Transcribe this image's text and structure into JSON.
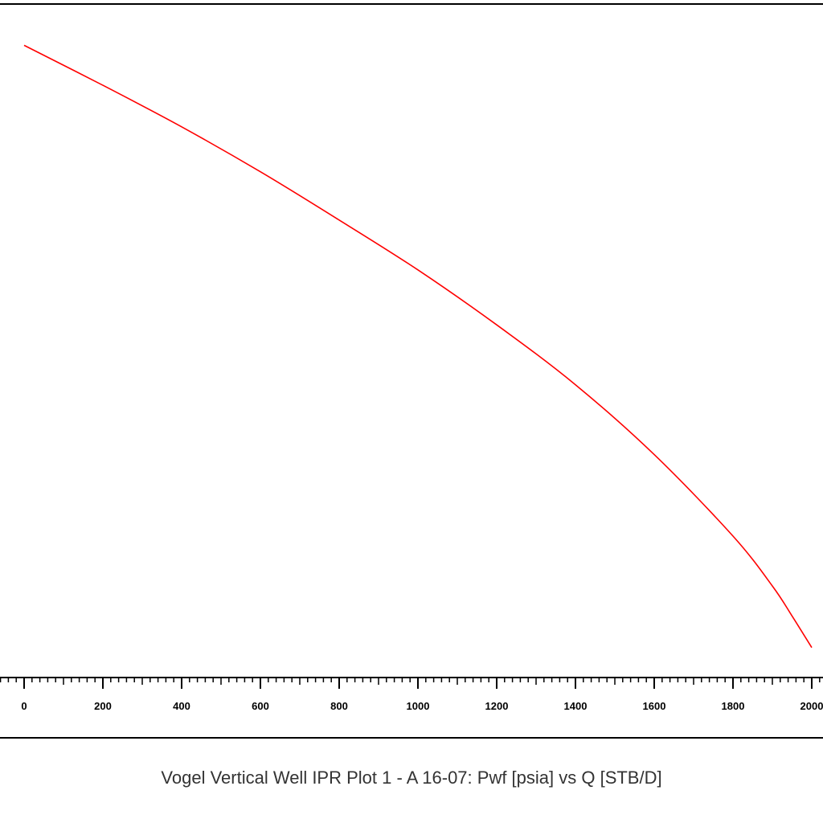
{
  "chart_data": {
    "type": "line",
    "title": "",
    "caption": "Vogel Vertical Well IPR Plot 1 - A 16-07: Pwf [psia] vs Q [STB/D]",
    "xlabel": "",
    "ylabel": "",
    "xlim": [
      0,
      2040
    ],
    "ylim": [
      0,
      2000
    ],
    "x_ticks": [
      {
        "value": 0,
        "label": "0"
      },
      {
        "value": 200,
        "label": "200"
      },
      {
        "value": 400,
        "label": "400"
      },
      {
        "value": 600,
        "label": "600"
      },
      {
        "value": 800,
        "label": "800"
      },
      {
        "value": 1000,
        "label": "1000"
      },
      {
        "value": 1200,
        "label": "1200"
      },
      {
        "value": 1400,
        "label": "1400"
      },
      {
        "value": 1600,
        "label": "1600"
      },
      {
        "value": 1800,
        "label": "1800"
      },
      {
        "value": 2000,
        "label": "2000"
      }
    ],
    "x_minor_step": 20,
    "grid": false,
    "series": [
      {
        "color": "#ff0000",
        "x": [
          0,
          200,
          400,
          600,
          800,
          1000,
          1200,
          1400,
          1600,
          1800,
          1900,
          1950,
          2000
        ],
        "y": [
          1900,
          1780,
          1655,
          1520,
          1375,
          1225,
          1060,
          880,
          670,
          425,
          275,
          185,
          90
        ]
      }
    ]
  }
}
